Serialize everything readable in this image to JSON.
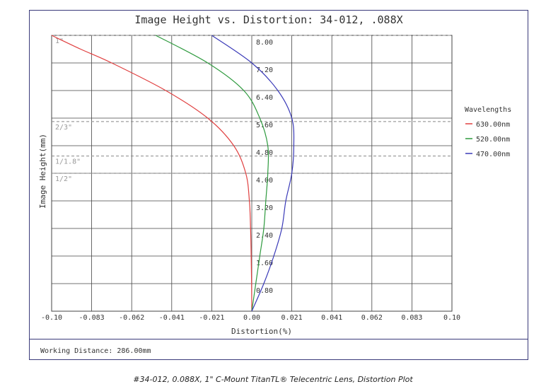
{
  "chart_data": {
    "type": "line",
    "title": "Image Height vs. Distortion: 34-012, .088X",
    "xlabel": "Distortion(%)",
    "ylabel": "Image Height(mm)",
    "xlim": [
      -0.1,
      0.1
    ],
    "ylim": [
      0,
      8.0
    ],
    "x_ticks": [
      "-0.10",
      "-0.083",
      "-0.062",
      "-0.041",
      "-0.021",
      "0.00",
      "0.021",
      "0.041",
      "0.062",
      "0.083",
      "0.10"
    ],
    "y_ticks": [
      "0.80",
      "1.60",
      "2.40",
      "3.20",
      "4.00",
      "4.80",
      "5.60",
      "6.40",
      "7.20",
      "8.00"
    ],
    "grid": true,
    "legend_title": "Wavelengths",
    "legend_position": "right",
    "sensor_formats": [
      {
        "label": "1\"",
        "y": 8.0
      },
      {
        "label": "2/3\"",
        "y": 5.5
      },
      {
        "label": "1/1.8\"",
        "y": 4.5
      },
      {
        "label": "1/2\"",
        "y": 4.0
      }
    ],
    "series": [
      {
        "name": "630.00nm",
        "color": "#e04040",
        "points": [
          [
            0,
            0
          ],
          [
            -0.0001,
            0.8
          ],
          [
            -0.0003,
            1.6
          ],
          [
            -0.0006,
            2.4
          ],
          [
            -0.0012,
            3.2
          ],
          [
            -0.003,
            4.0
          ],
          [
            -0.009,
            4.8
          ],
          [
            -0.022,
            5.6
          ],
          [
            -0.043,
            6.4
          ],
          [
            -0.07,
            7.2
          ],
          [
            -0.0855,
            7.6
          ],
          [
            -0.1,
            8.0
          ]
        ]
      },
      {
        "name": "520.00nm",
        "color": "#2e9a3e",
        "points": [
          [
            0,
            0
          ],
          [
            0.002,
            0.8
          ],
          [
            0.004,
            1.6
          ],
          [
            0.006,
            2.4
          ],
          [
            0.007,
            3.2
          ],
          [
            0.008,
            4.0
          ],
          [
            0.008,
            4.8
          ],
          [
            0.004,
            5.6
          ],
          [
            -0.004,
            6.4
          ],
          [
            -0.022,
            7.2
          ],
          [
            -0.048,
            8.0
          ]
        ]
      },
      {
        "name": "470.00nm",
        "color": "#3a3ab8",
        "points": [
          [
            0,
            0
          ],
          [
            0.006,
            0.8
          ],
          [
            0.011,
            1.6
          ],
          [
            0.015,
            2.4
          ],
          [
            0.017,
            3.2
          ],
          [
            0.02,
            4.0
          ],
          [
            0.021,
            4.8
          ],
          [
            0.02,
            5.6
          ],
          [
            0.013,
            6.4
          ],
          [
            0.0,
            7.2
          ],
          [
            -0.02,
            8.0
          ]
        ]
      }
    ]
  },
  "footer": {
    "working_distance": "Working Distance: 286.00mm"
  },
  "caption": "#34-012, 0.088X, 1\" C-Mount TitanTL® Telecentric Lens, Distortion Plot"
}
